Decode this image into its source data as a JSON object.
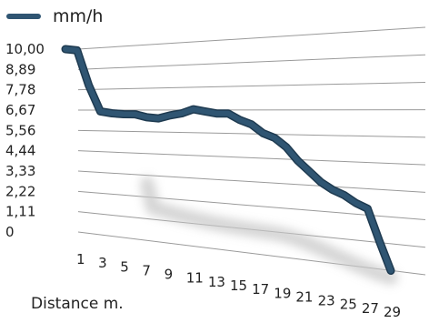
{
  "chart_data": {
    "type": "line",
    "title": "",
    "xlabel": "Distance m.",
    "ylabel": "",
    "legend": {
      "position": "top-left"
    },
    "grid": true,
    "ylim": [
      0,
      10
    ],
    "yticks": [
      "10,00",
      "8,89",
      "7,78",
      "6,67",
      "5,56",
      "4,44",
      "3,33",
      "2,22",
      "1,11",
      "0"
    ],
    "x_tick_labels": [
      "1",
      "3",
      "5",
      "7",
      "9",
      "11",
      "13",
      "15",
      "17",
      "19",
      "21",
      "23",
      "25",
      "27",
      "29"
    ],
    "x": [
      1,
      2,
      3,
      4,
      5,
      6,
      7,
      8,
      9,
      10,
      11,
      12,
      13,
      14,
      15,
      16,
      17,
      18,
      19,
      20,
      21,
      22,
      23,
      24,
      25,
      26,
      27,
      28,
      29
    ],
    "series": [
      {
        "name": "mm/h",
        "color": "#2f5572",
        "values": [
          10.0,
          9.9,
          8.0,
          6.6,
          6.5,
          6.45,
          6.45,
          6.3,
          6.25,
          6.4,
          6.5,
          6.7,
          6.6,
          6.5,
          6.5,
          6.2,
          6.0,
          5.6,
          5.4,
          5.0,
          4.4,
          3.95,
          3.5,
          3.2,
          3.0,
          2.7,
          2.5,
          1.2,
          0.0
        ]
      }
    ]
  }
}
